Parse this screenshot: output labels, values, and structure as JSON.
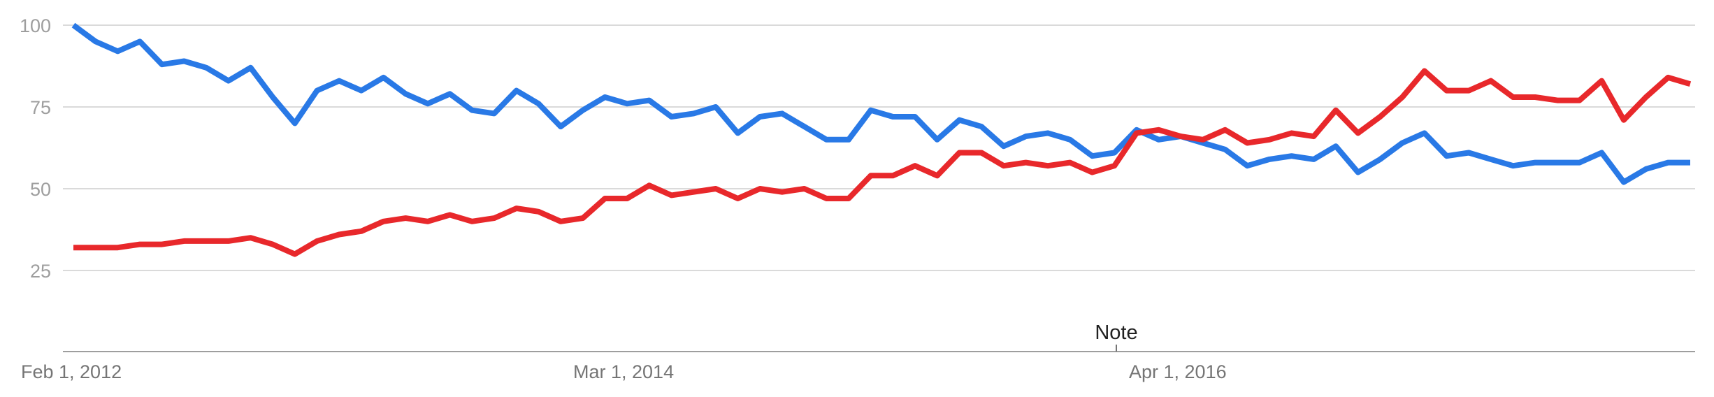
{
  "chart_data": {
    "type": "line",
    "title": "",
    "xlabel": "",
    "ylabel": "",
    "ylim": [
      0,
      100
    ],
    "yticks": [
      25,
      50,
      75,
      100
    ],
    "grid": true,
    "x_tick_labels": [
      "Feb 1, 2012",
      "Mar 1, 2014",
      "Apr 1, 2016"
    ],
    "annotation": "Note",
    "series": [
      {
        "color": "#2979e6",
        "values": [
          100,
          95,
          92,
          95,
          88,
          89,
          87,
          83,
          87,
          78,
          70,
          80,
          83,
          80,
          84,
          79,
          76,
          79,
          74,
          73,
          80,
          76,
          69,
          74,
          78,
          76,
          77,
          72,
          73,
          75,
          67,
          72,
          73,
          69,
          65,
          65,
          74,
          72,
          72,
          65,
          71,
          69,
          63,
          66,
          67,
          65,
          60,
          61,
          68,
          65,
          66,
          64,
          62,
          57,
          59,
          60,
          59,
          63,
          55,
          59,
          64,
          67,
          60,
          61,
          59,
          57,
          58,
          58,
          58,
          61,
          52,
          56,
          58,
          58
        ]
      },
      {
        "color": "#e8282b",
        "values": [
          32,
          32,
          32,
          33,
          33,
          34,
          34,
          34,
          35,
          33,
          30,
          34,
          36,
          37,
          40,
          41,
          40,
          42,
          40,
          41,
          44,
          43,
          40,
          41,
          47,
          47,
          51,
          48,
          49,
          50,
          47,
          50,
          49,
          50,
          47,
          47,
          54,
          54,
          57,
          54,
          61,
          61,
          57,
          58,
          57,
          58,
          55,
          57,
          67,
          68,
          66,
          65,
          68,
          64,
          65,
          67,
          66,
          74,
          67,
          72,
          78,
          86,
          80,
          80,
          83,
          78,
          78,
          77,
          77,
          83,
          71,
          78,
          84,
          82
        ]
      }
    ]
  }
}
